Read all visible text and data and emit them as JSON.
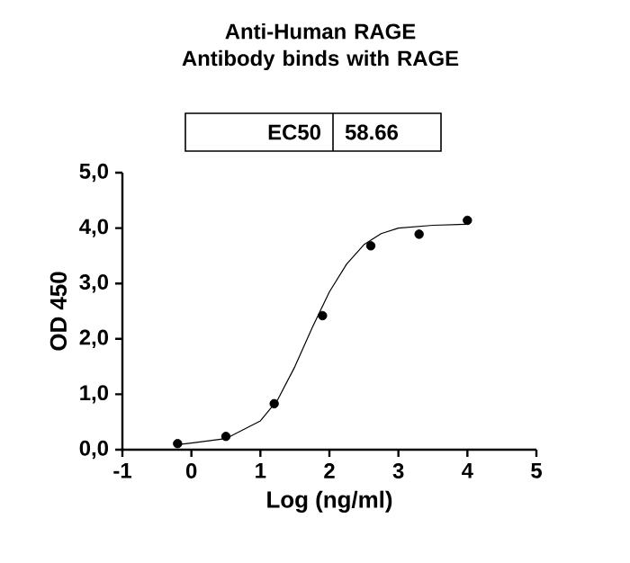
{
  "chart_data": {
    "type": "scatter",
    "title": "Anti-Human RAGE Antibody binds with RAGE",
    "xlabel": "Log (ng/ml)",
    "ylabel": "OD 450",
    "annotations": [
      "EC50",
      "58.66"
    ],
    "xlim": [
      -1,
      5
    ],
    "xticks": [
      -1,
      0,
      1,
      2,
      3,
      4,
      5
    ],
    "ylim": [
      0,
      5
    ],
    "yticks": [
      {
        "value": 0,
        "label": "0,0"
      },
      {
        "value": 1,
        "label": "1,0"
      },
      {
        "value": 2,
        "label": "2,0"
      },
      {
        "value": 3,
        "label": "3,0"
      },
      {
        "value": 4,
        "label": "4,0"
      },
      {
        "value": 5,
        "label": "5,0"
      }
    ],
    "grid": false,
    "series": [
      {
        "color": "#000000",
        "marker": "circle",
        "x": [
          -0.2,
          0.5,
          1.2,
          1.9,
          2.6,
          3.3,
          4.0
        ],
        "values": [
          0.11,
          0.24,
          0.83,
          2.42,
          3.68,
          3.89,
          4.14
        ]
      },
      {
        "type": "line",
        "color": "#000000",
        "marker": "none",
        "line_style": "solid",
        "x": [
          -0.2,
          0,
          0.5,
          1.0,
          1.25,
          1.5,
          1.75,
          2.0,
          2.25,
          2.5,
          2.75,
          3.0,
          3.5,
          4.0
        ],
        "values": [
          0.09,
          0.12,
          0.2,
          0.52,
          0.9,
          1.5,
          2.2,
          2.85,
          3.35,
          3.7,
          3.9,
          4.0,
          4.05,
          4.07
        ]
      }
    ]
  }
}
